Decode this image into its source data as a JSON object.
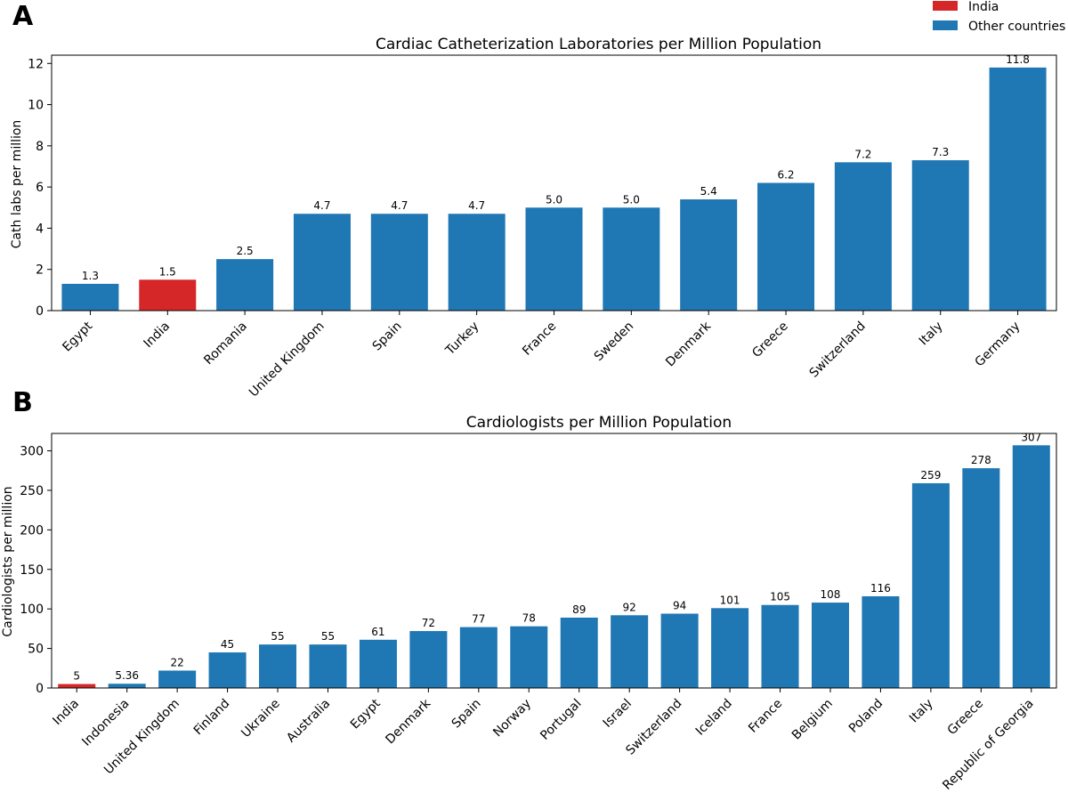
{
  "colors": {
    "highlight": "#d62728",
    "other": "#1f77b4"
  },
  "legend": {
    "position": "top-right",
    "entries": [
      {
        "label": "India",
        "color": "#d62728"
      },
      {
        "label": "Other countries",
        "color": "#1f77b4"
      }
    ]
  },
  "chart_data": [
    {
      "panel": "A",
      "type": "bar",
      "title": "Cardiac Catheterization Laboratories per Million Population",
      "xlabel": "",
      "ylabel": "Cath labs per million",
      "ylim": [
        0,
        12.4
      ],
      "yticks": [
        0,
        2,
        4,
        6,
        8,
        10,
        12
      ],
      "highlight": "India",
      "categories": [
        "Egypt",
        "India",
        "Romania",
        "United Kingdom",
        "Spain",
        "Turkey",
        "France",
        "Sweden",
        "Denmark",
        "Greece",
        "Switzerland",
        "Italy",
        "Germany"
      ],
      "values": [
        1.3,
        1.5,
        2.5,
        4.7,
        4.7,
        4.7,
        5.0,
        5.0,
        5.4,
        6.2,
        7.2,
        7.3,
        11.8
      ],
      "value_labels": [
        "1.3",
        "1.5",
        "2.5",
        "4.7",
        "4.7",
        "4.7",
        "5.0",
        "5.0",
        "5.4",
        "6.2",
        "7.2",
        "7.3",
        "11.8"
      ]
    },
    {
      "panel": "B",
      "type": "bar",
      "title": "Cardiologists per Million Population",
      "xlabel": "",
      "ylabel": "Cardiologists per million",
      "ylim": [
        0,
        322
      ],
      "yticks": [
        0,
        50,
        100,
        150,
        200,
        250,
        300
      ],
      "highlight": "India",
      "categories": [
        "India",
        "Indonesia",
        "United Kingdom",
        "Finland",
        "Ukraine",
        "Australia",
        "Egypt",
        "Denmark",
        "Spain",
        "Norway",
        "Portugal",
        "Israel",
        "Switzerland",
        "Iceland",
        "France",
        "Belgium",
        "Poland",
        "Italy",
        "Greece",
        "Republic of Georgia"
      ],
      "values": [
        5,
        5.36,
        22,
        45,
        55,
        55,
        61,
        72,
        77,
        78,
        89,
        92,
        94,
        101,
        105,
        108,
        116,
        259,
        278,
        307
      ],
      "value_labels": [
        "5",
        "5.36",
        "22",
        "45",
        "55",
        "55",
        "61",
        "72",
        "77",
        "78",
        "89",
        "92",
        "94",
        "101",
        "105",
        "108",
        "116",
        "259",
        "278",
        "307"
      ]
    }
  ]
}
